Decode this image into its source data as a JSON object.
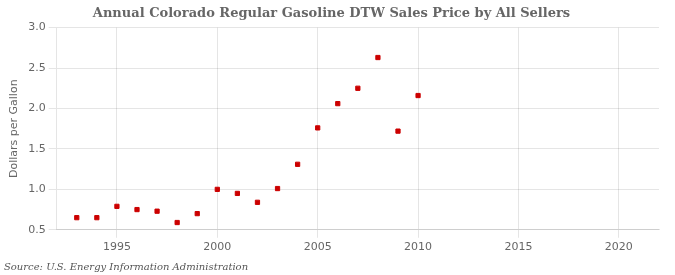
{
  "chart_data": {
    "type": "scatter",
    "title": "Annual Colorado Regular Gasoline DTW Sales Price by All Sellers",
    "y_label": "Dollars per Gallon",
    "annotation": "Source: U.S. Energy Information Administration",
    "x": [
      1993,
      1994,
      1995,
      1996,
      1997,
      1998,
      1999,
      2000,
      2001,
      2002,
      2003,
      2004,
      2005,
      2006,
      2007,
      2008,
      2009,
      2010
    ],
    "values": [
      0.65,
      0.65,
      0.79,
      0.75,
      0.73,
      0.59,
      0.7,
      1.0,
      0.95,
      0.84,
      1.01,
      1.31,
      1.76,
      2.06,
      2.25,
      2.63,
      1.72,
      2.16
    ],
    "color": "#cc0000",
    "marker": "square",
    "xlim": [
      1992,
      2022
    ],
    "xticks": [
      1995,
      2000,
      2005,
      2010,
      2015,
      2020
    ],
    "ylim": [
      0.5,
      3.0
    ],
    "yticks": [
      0.5,
      {
        "value": 1.0,
        "label": "1.0"
      },
      1.5,
      {
        "value": 2.0,
        "label": "2.0"
      },
      2.5,
      {
        "value": 3.0,
        "label": "3.0"
      }
    ],
    "grid": true
  }
}
